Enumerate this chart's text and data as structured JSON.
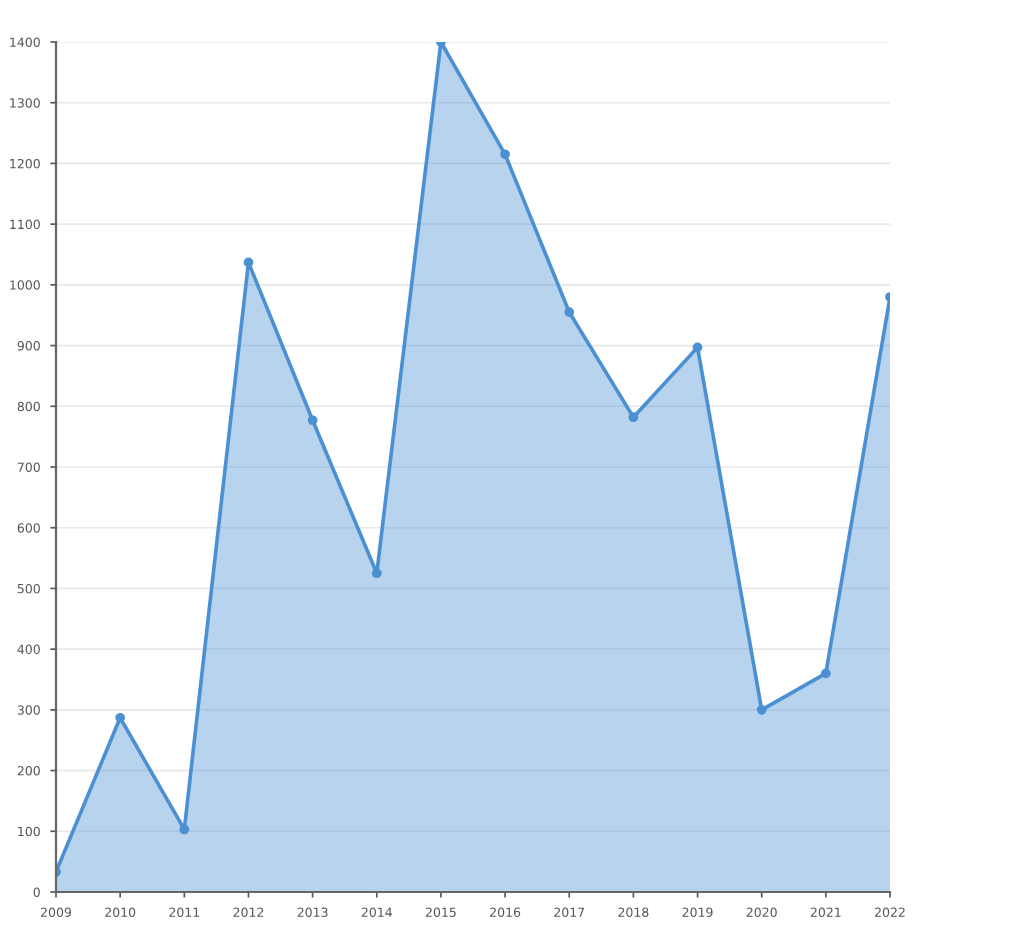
{
  "chart_data": {
    "type": "area",
    "x": [
      2009,
      2010,
      2011,
      2012,
      2013,
      2014,
      2015,
      2016,
      2017,
      2018,
      2019,
      2020,
      2021,
      2022
    ],
    "series": [
      {
        "color": "#4a90d2",
        "values": [
          33,
          287,
          103,
          1037,
          777,
          525,
          1400,
          1215,
          955,
          782,
          897,
          300,
          360,
          980
        ]
      }
    ],
    "xlim": [
      2009,
      2022
    ],
    "xticks": [
      2009,
      2010,
      2011,
      2012,
      2013,
      2014,
      2015,
      2016,
      2017,
      2018,
      2019,
      2020,
      2021,
      2022
    ],
    "ylim": [
      0,
      1400
    ],
    "yticks": [
      0,
      100,
      200,
      300,
      400,
      500,
      600,
      700,
      800,
      900,
      1000,
      1100,
      1200,
      1300,
      1400
    ],
    "grid": "y",
    "marker": "circle",
    "line_style": "solid",
    "legend": false
  }
}
